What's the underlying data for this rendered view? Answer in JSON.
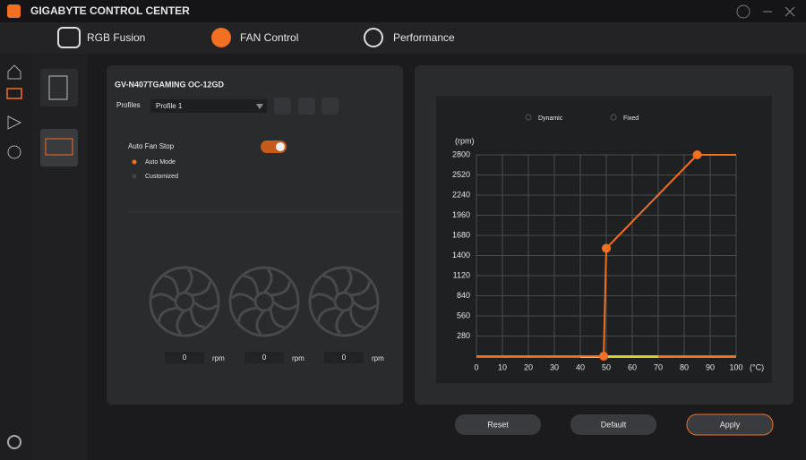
{
  "app_title": "GIGABYTE CONTROL CENTER",
  "tabs": [
    "RGB Fusion",
    "FAN Control",
    "Performance"
  ],
  "device": "GV-N407TGAMING OC-12GD",
  "profiles": {
    "label": "Profiles",
    "value": "Profile 1"
  },
  "auto_fan_stop": {
    "label": "Auto Fan Stop",
    "options": [
      "Auto Mode",
      "Customized"
    ]
  },
  "fans": [
    {
      "value": 0,
      "unit": "rpm"
    },
    {
      "value": 0,
      "unit": "rpm"
    },
    {
      "value": 0,
      "unit": "rpm"
    }
  ],
  "chart_data": {
    "type": "line",
    "modes": [
      "Dynamic",
      "Fixed"
    ],
    "y_label": "(rpm)",
    "x_label": "(°C)",
    "x": [
      0,
      49,
      50,
      85,
      100
    ],
    "values": [
      0,
      0,
      1500,
      2800,
      2800
    ],
    "color": "#f36f21",
    "xlim": [
      0,
      100
    ],
    "xticks": [
      0,
      10,
      20,
      30,
      40,
      50,
      60,
      70,
      80,
      90,
      100
    ],
    "ylim": [
      0,
      2800
    ],
    "yticks": [
      280,
      560,
      840,
      1120,
      1400,
      1680,
      1960,
      2240,
      2520,
      2800
    ],
    "grid": true,
    "zones": [
      {
        "from": 0,
        "to": 40,
        "color": "#3fae2a"
      },
      {
        "from": 40,
        "to": 70,
        "color": "#d6d12a"
      },
      {
        "from": 70,
        "to": 100,
        "color": "#f36f21"
      }
    ]
  },
  "buttons": [
    "Reset",
    "Default",
    "Apply"
  ]
}
